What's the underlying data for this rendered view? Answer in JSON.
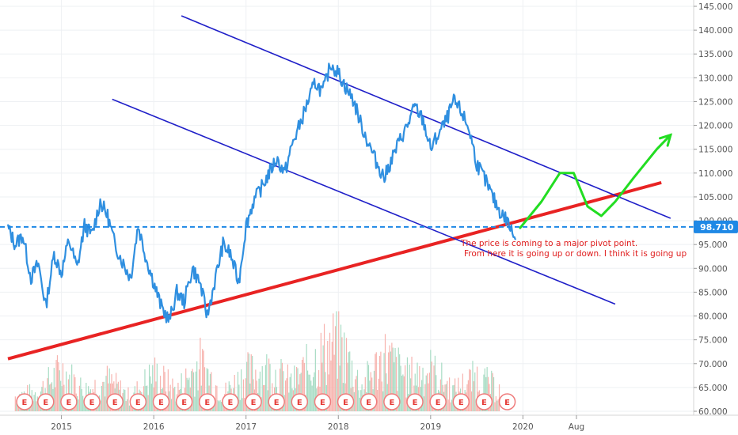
{
  "chart_data": {
    "type": "line",
    "title": "",
    "y_axis": {
      "position": "right",
      "range": [
        60,
        146
      ],
      "ticks": [
        "145.000",
        "140.000",
        "135.000",
        "130.000",
        "125.000",
        "120.000",
        "115.000",
        "110.000",
        "105.000",
        "100.000",
        "95.000",
        "90.000",
        "85.000",
        "80.000",
        "75.000",
        "70.000",
        "65.000",
        "60.000"
      ]
    },
    "x_axis": {
      "range": [
        "2014-05",
        "2021-12"
      ],
      "ticks": [
        {
          "label": "2015",
          "date": 2015.0
        },
        {
          "label": "2016",
          "date": 2016.0
        },
        {
          "label": "2017",
          "date": 2017.0
        },
        {
          "label": "2018",
          "date": 2018.0
        },
        {
          "label": "2019",
          "date": 2019.0
        },
        {
          "label": "2020",
          "date": 2020.0
        },
        {
          "label": "Aug",
          "date": 2020.58
        }
      ]
    },
    "grid": true,
    "series": [
      {
        "color": "#2f8fe0",
        "points": [
          [
            2014.42,
            98.5
          ],
          [
            2014.5,
            95
          ],
          [
            2014.58,
            97
          ],
          [
            2014.67,
            88
          ],
          [
            2014.75,
            91
          ],
          [
            2014.83,
            82
          ],
          [
            2014.92,
            93
          ],
          [
            2015.0,
            89
          ],
          [
            2015.08,
            96
          ],
          [
            2015.17,
            90
          ],
          [
            2015.25,
            99
          ],
          [
            2015.33,
            97
          ],
          [
            2015.42,
            104
          ],
          [
            2015.5,
            101
          ],
          [
            2015.58,
            95
          ],
          [
            2015.67,
            91
          ],
          [
            2015.75,
            88
          ],
          [
            2015.83,
            99
          ],
          [
            2015.92,
            92
          ],
          [
            2016.0,
            87
          ],
          [
            2016.08,
            82
          ],
          [
            2016.17,
            79
          ],
          [
            2016.25,
            85
          ],
          [
            2016.33,
            83
          ],
          [
            2016.42,
            90
          ],
          [
            2016.5,
            87
          ],
          [
            2016.58,
            80
          ],
          [
            2016.67,
            88
          ],
          [
            2016.75,
            95
          ],
          [
            2016.83,
            93
          ],
          [
            2016.92,
            87
          ],
          [
            2017.0,
            99
          ],
          [
            2017.08,
            104
          ],
          [
            2017.17,
            107
          ],
          [
            2017.25,
            110
          ],
          [
            2017.33,
            113
          ],
          [
            2017.42,
            110
          ],
          [
            2017.5,
            116
          ],
          [
            2017.58,
            120
          ],
          [
            2017.67,
            125
          ],
          [
            2017.75,
            129
          ],
          [
            2017.83,
            127
          ],
          [
            2017.92,
            133
          ],
          [
            2018.0,
            131
          ],
          [
            2018.08,
            128
          ],
          [
            2018.17,
            125
          ],
          [
            2018.25,
            120
          ],
          [
            2018.33,
            116
          ],
          [
            2018.42,
            112
          ],
          [
            2018.5,
            109
          ],
          [
            2018.58,
            113
          ],
          [
            2018.67,
            117
          ],
          [
            2018.75,
            120
          ],
          [
            2018.83,
            124
          ],
          [
            2018.92,
            121
          ],
          [
            2019.0,
            115
          ],
          [
            2019.08,
            118
          ],
          [
            2019.17,
            121
          ],
          [
            2019.25,
            125
          ],
          [
            2019.33,
            123
          ],
          [
            2019.42,
            119
          ],
          [
            2019.5,
            112
          ],
          [
            2019.58,
            109
          ],
          [
            2019.67,
            105
          ],
          [
            2019.75,
            102
          ],
          [
            2019.83,
            100
          ],
          [
            2019.92,
            96
          ]
        ]
      }
    ],
    "current_price": 98.71,
    "current_price_label": "98.710",
    "volume": [
      [
        2014.5,
        64.5
      ],
      [
        2014.75,
        65.5
      ],
      [
        2015.0,
        72
      ],
      [
        2015.25,
        66
      ],
      [
        2015.5,
        69
      ],
      [
        2015.75,
        64
      ],
      [
        2016.0,
        71
      ],
      [
        2016.25,
        66
      ],
      [
        2016.5,
        74
      ],
      [
        2016.75,
        65
      ],
      [
        2017.0,
        71
      ],
      [
        2017.25,
        72
      ],
      [
        2017.5,
        68
      ],
      [
        2017.75,
        75
      ],
      [
        2018.0,
        80.5
      ],
      [
        2018.25,
        67
      ],
      [
        2018.5,
        76
      ],
      [
        2018.75,
        70
      ],
      [
        2019.0,
        72
      ],
      [
        2019.25,
        66
      ],
      [
        2019.5,
        70
      ],
      [
        2019.75,
        66
      ]
    ],
    "earnings_markers": [
      2014.6,
      2014.83,
      2015.08,
      2015.33,
      2015.58,
      2015.83,
      2016.08,
      2016.33,
      2016.58,
      2016.83,
      2017.08,
      2017.33,
      2017.58,
      2017.83,
      2018.08,
      2018.33,
      2018.58,
      2018.83,
      2019.08,
      2019.33,
      2019.58,
      2019.83
    ],
    "earnings_label": "E",
    "trendlines": [
      {
        "name": "support",
        "color": "#e82323",
        "from": [
          2014.42,
          71
        ],
        "to": [
          2021.5,
          108
        ]
      },
      {
        "name": "channel-upper",
        "color": "#1f1fc8",
        "from": [
          2016.3,
          143
        ],
        "to": [
          2021.6,
          100.5
        ]
      },
      {
        "name": "channel-lower",
        "color": "#1f1fc8",
        "from": [
          2015.55,
          125.5
        ],
        "to": [
          2021.0,
          82.5
        ]
      }
    ],
    "projection": [
      [
        2019.97,
        98.5
      ],
      [
        2020.2,
        104
      ],
      [
        2020.4,
        110
      ],
      [
        2020.55,
        110
      ],
      [
        2020.7,
        103
      ],
      [
        2020.85,
        101
      ],
      [
        2021.0,
        104
      ],
      [
        2021.2,
        109
      ],
      [
        2021.45,
        115
      ],
      [
        2021.6,
        118
      ]
    ],
    "annotation": {
      "line1": "The price is coming to a major pivot point.",
      "line2": "From here it is going up or down. I think it is going up"
    }
  }
}
